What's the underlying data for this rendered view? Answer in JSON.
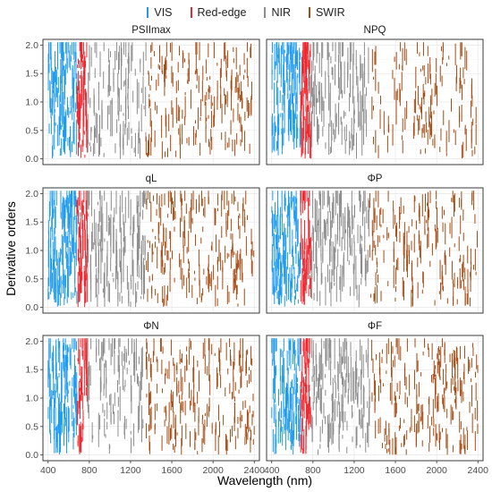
{
  "chart_data": {
    "type": "bar",
    "xlabel": "Wavelength (nm)",
    "ylabel": "Derivative orders",
    "xlim": [
      350,
      2450
    ],
    "ylim": [
      -0.1,
      2.1
    ],
    "x_ticks": [
      400,
      800,
      1200,
      1600,
      2000,
      2400
    ],
    "y_ticks": [
      0.0,
      0.5,
      1.0,
      1.5,
      2.0
    ],
    "x_tick_labels": [
      "400",
      "800",
      "1200",
      "1600",
      "2000",
      "2400"
    ],
    "y_tick_labels": [
      "0.0",
      "0.5",
      "1.0",
      "1.5",
      "2.0"
    ],
    "grid": true,
    "legend_position": "top",
    "legend": [
      {
        "name": "VIS",
        "color": "#1f9bee",
        "range": [
          400,
          680
        ]
      },
      {
        "name": "Red-edge",
        "color": "#f0262e",
        "range": [
          680,
          780
        ]
      },
      {
        "name": "NIR",
        "color": "#8c8c8c",
        "range": [
          780,
          1350
        ]
      },
      {
        "name": "SWIR",
        "color": "#a64b12",
        "range": [
          1350,
          2400
        ]
      }
    ],
    "panels": [
      {
        "title": "PSIImax",
        "density": [
          0.85,
          0.9,
          0.55,
          0.55
        ]
      },
      {
        "title": "NPQ",
        "density": [
          0.85,
          0.8,
          0.6,
          0.45
        ]
      },
      {
        "title": "qL",
        "density": [
          0.9,
          0.95,
          0.75,
          0.6
        ]
      },
      {
        "title": "ΦP",
        "density": [
          0.9,
          0.9,
          0.75,
          0.55
        ]
      },
      {
        "title": "ΦN",
        "density": [
          0.85,
          0.85,
          0.6,
          0.55
        ]
      },
      {
        "title": "ΦF",
        "density": [
          0.85,
          0.85,
          0.75,
          0.65
        ]
      }
    ]
  }
}
